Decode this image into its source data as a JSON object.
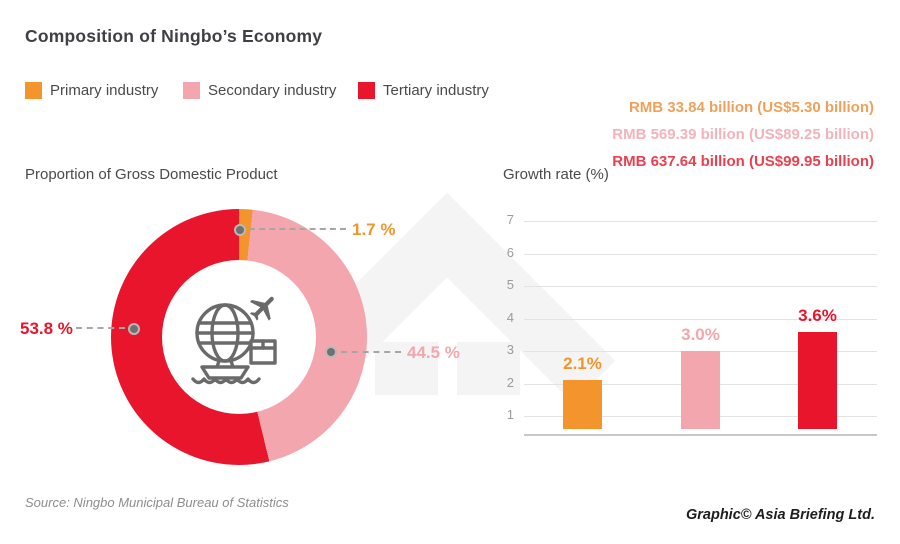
{
  "page": {
    "title": "Composition of Ningbo’s Economy"
  },
  "legend": [
    {
      "label": "Primary industry",
      "color": "#F3952C"
    },
    {
      "label": "Secondary industry",
      "color": "#F4A6AE"
    },
    {
      "label": "Tertiary industry",
      "color": "#E8152C"
    }
  ],
  "values_panel": [
    {
      "text": "RMB 33.84 billion (US$5.30 billion)",
      "color": "#F0A159"
    },
    {
      "text": "RMB 569.39 billion (US$89.25 billion)",
      "color": "#F2B3BA"
    },
    {
      "text": "RMB 637.64 billion (US$99.95 billion)",
      "color": "#E9404F"
    }
  ],
  "chart_data": [
    {
      "type": "pie",
      "donut": true,
      "title": "Proportion of Gross Domestic Product",
      "unit": "%",
      "categories": [
        "Primary industry",
        "Secondary industry",
        "Tertiary industry"
      ],
      "values": [
        1.7,
        44.5,
        53.8
      ],
      "labels": [
        "1.7 %",
        "44.5 %",
        "53.8 %"
      ],
      "colors": [
        "#F3952C",
        "#F4A6AE",
        "#E8152C"
      ],
      "start_angle_deg": 0,
      "direction": "clockwise",
      "center_icon": "global-trade"
    },
    {
      "type": "bar",
      "title": "Growth rate (%)",
      "categories": [
        "Primary industry",
        "Secondary industry",
        "Tertiary industry"
      ],
      "values": [
        2.1,
        3.0,
        3.6
      ],
      "labels": [
        "2.1%",
        "3.0%",
        "3.6%"
      ],
      "colors": [
        "#F3952C",
        "#F4A6AE",
        "#E8152C"
      ],
      "yticks": [
        1,
        2,
        3,
        4,
        5,
        6,
        7
      ],
      "ylim": [
        0.6,
        7.6
      ],
      "grid": true,
      "legend_position": "none"
    }
  ],
  "footer": {
    "source": "Source: Ningbo Municipal Bureau of Statistics",
    "credit": "Graphic© Asia Briefing Ltd."
  }
}
